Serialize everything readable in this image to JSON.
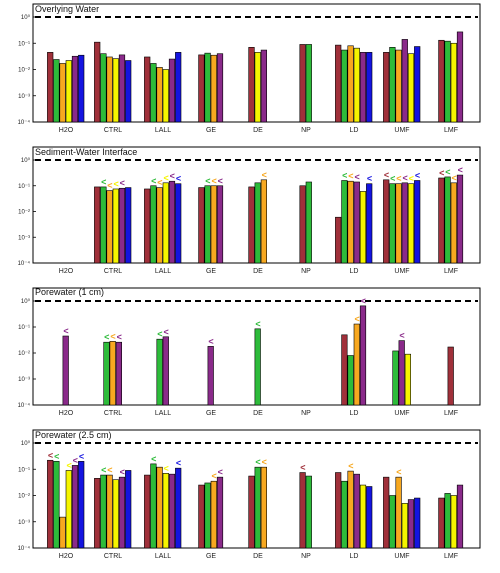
{
  "colors": {
    "brown": "#a0303a",
    "green": "#2dbb3a",
    "orange": "#f7a820",
    "yellow": "#f5f500",
    "purple": "#8a2a8a",
    "blue": "#1414e0"
  },
  "chart_data": [
    {
      "type": "bar",
      "title": "Overlying Water",
      "log_scale": true,
      "ylim": [
        0.0001,
        1
      ],
      "ytick_labels": [
        "10⁻⁴",
        "10⁻³",
        "10⁻²",
        "10⁻¹",
        "10⁰"
      ],
      "reference_line": 1,
      "categories": [
        "H2O",
        "CTRL",
        "LALL",
        "GE",
        "DE",
        "NP",
        "LD",
        "UMF",
        "LMF"
      ],
      "groups": [
        [
          [
            "brown",
            0.045
          ],
          [
            "green",
            0.024
          ],
          [
            "orange",
            0.017
          ],
          [
            "yellow",
            0.022
          ],
          [
            "purple",
            0.032
          ],
          [
            "blue",
            0.035
          ]
        ],
        [
          [
            "brown",
            0.11
          ],
          [
            "green",
            0.04
          ],
          [
            "orange",
            0.03
          ],
          [
            "yellow",
            0.026
          ],
          [
            "purple",
            0.036
          ],
          [
            "blue",
            0.022
          ]
        ],
        [
          [
            "brown",
            0.03
          ],
          [
            "green",
            0.017
          ],
          [
            "orange",
            0.012
          ],
          [
            "yellow",
            0.01
          ],
          [
            "purple",
            0.025
          ],
          [
            "blue",
            0.045
          ]
        ],
        [
          [
            "brown",
            0.036
          ],
          [
            "green",
            0.042
          ],
          [
            "orange",
            0.035
          ],
          [
            "purple",
            0.04
          ]
        ],
        [
          [
            "brown",
            0.07
          ],
          [
            "yellow",
            0.045
          ],
          [
            "purple",
            0.055
          ]
        ],
        [
          [
            "brown",
            0.09
          ],
          [
            "green",
            0.09
          ]
        ],
        [
          [
            "brown",
            0.085
          ],
          [
            "green",
            0.055
          ],
          [
            "orange",
            0.08
          ],
          [
            "yellow",
            0.065
          ],
          [
            "purple",
            0.045
          ],
          [
            "blue",
            0.045
          ]
        ],
        [
          [
            "brown",
            0.045
          ],
          [
            "green",
            0.07
          ],
          [
            "orange",
            0.055
          ],
          [
            "purple",
            0.14
          ],
          [
            "yellow",
            0.04
          ],
          [
            "blue",
            0.075
          ]
        ],
        [
          [
            "brown",
            0.13
          ],
          [
            "green",
            0.12
          ],
          [
            "yellow",
            0.1
          ],
          [
            "purple",
            0.27
          ]
        ]
      ],
      "less_than": []
    },
    {
      "type": "bar",
      "title": "Sediment-Water Interface",
      "log_scale": true,
      "ylim": [
        0.0001,
        1
      ],
      "ytick_labels": [
        "10⁻⁴",
        "10⁻³",
        "10⁻²",
        "10⁻¹",
        "10⁰"
      ],
      "reference_line": 1,
      "categories": [
        "H2O",
        "CTRL",
        "LALL",
        "GE",
        "DE",
        "NP",
        "LD",
        "UMF",
        "LMF"
      ],
      "groups": [
        [],
        [
          [
            "brown",
            0.09
          ],
          [
            "green",
            0.09
          ],
          [
            "orange",
            0.065
          ],
          [
            "yellow",
            0.075
          ],
          [
            "purple",
            0.08
          ],
          [
            "blue",
            0.085
          ]
        ],
        [
          [
            "brown",
            0.075
          ],
          [
            "green",
            0.1
          ],
          [
            "orange",
            0.085
          ],
          [
            "yellow",
            0.13
          ],
          [
            "purple",
            0.15
          ],
          [
            "blue",
            0.12
          ]
        ],
        [
          [
            "brown",
            0.085
          ],
          [
            "green",
            0.1
          ],
          [
            "orange",
            0.1
          ],
          [
            "purple",
            0.1
          ]
        ],
        [
          [
            "brown",
            0.09
          ],
          [
            "green",
            0.13
          ],
          [
            "orange",
            0.17
          ]
        ],
        [
          [
            "brown",
            0.1
          ],
          [
            "green",
            0.14
          ]
        ],
        [
          [
            "brown",
            0.006
          ],
          [
            "green",
            0.16
          ],
          [
            "orange",
            0.15
          ],
          [
            "purple",
            0.14
          ],
          [
            "yellow",
            0.06
          ],
          [
            "blue",
            0.12
          ]
        ],
        [
          [
            "brown",
            0.17
          ],
          [
            "green",
            0.12
          ],
          [
            "orange",
            0.12
          ],
          [
            "purple",
            0.13
          ],
          [
            "yellow",
            0.12
          ],
          [
            "blue",
            0.16
          ]
        ],
        [
          [
            "brown",
            0.2
          ],
          [
            "green",
            0.22
          ],
          [
            "orange",
            0.13
          ],
          [
            "purple",
            0.26
          ]
        ]
      ],
      "less_than": [
        [
          1,
          1,
          "green"
        ],
        [
          1,
          2,
          "orange"
        ],
        [
          1,
          3,
          "yellow"
        ],
        [
          1,
          4,
          "purple"
        ],
        [
          2,
          1,
          "green"
        ],
        [
          2,
          2,
          "orange"
        ],
        [
          2,
          3,
          "yellow"
        ],
        [
          2,
          4,
          "purple"
        ],
        [
          2,
          5,
          "blue"
        ],
        [
          3,
          1,
          "green"
        ],
        [
          3,
          2,
          "orange"
        ],
        [
          3,
          3,
          "purple"
        ],
        [
          4,
          2,
          "orange"
        ],
        [
          6,
          1,
          "green"
        ],
        [
          6,
          2,
          "orange"
        ],
        [
          6,
          3,
          "purple"
        ],
        [
          6,
          5,
          "blue"
        ],
        [
          7,
          0,
          "brown"
        ],
        [
          7,
          1,
          "green"
        ],
        [
          7,
          2,
          "orange"
        ],
        [
          7,
          3,
          "purple"
        ],
        [
          7,
          4,
          "yellow"
        ],
        [
          7,
          5,
          "blue"
        ],
        [
          8,
          0,
          "brown"
        ],
        [
          8,
          1,
          "green"
        ],
        [
          8,
          2,
          "orange"
        ],
        [
          8,
          3,
          "purple"
        ]
      ]
    },
    {
      "type": "bar",
      "title": "Porewater (1 cm)",
      "log_scale": true,
      "ylim": [
        0.0001,
        1
      ],
      "ytick_labels": [
        "10⁻⁴",
        "10⁻³",
        "10⁻²",
        "10⁻¹",
        "10⁰"
      ],
      "reference_line": 1,
      "categories": [
        "H2O",
        "CTRL",
        "LALL",
        "GE",
        "DE",
        "NP",
        "LD",
        "UMF",
        "LMF"
      ],
      "groups": [
        [
          [
            "purple",
            0.045
          ]
        ],
        [
          [
            "green",
            0.026
          ],
          [
            "orange",
            0.028
          ],
          [
            "purple",
            0.026
          ]
        ],
        [
          [
            "green",
            0.034
          ],
          [
            "purple",
            0.042
          ]
        ],
        [
          [
            "purple",
            0.018
          ]
        ],
        [
          [
            "green",
            0.085
          ]
        ],
        [],
        [
          [
            "brown",
            0.05
          ],
          [
            "green",
            0.008
          ],
          [
            "orange",
            0.13
          ],
          [
            "purple",
            0.65
          ]
        ],
        [
          [
            "green",
            0.012
          ],
          [
            "purple",
            0.03
          ],
          [
            "yellow",
            0.009
          ]
        ],
        [
          [
            "brown",
            0.017
          ]
        ]
      ],
      "less_than": [
        [
          0,
          0,
          "purple"
        ],
        [
          1,
          0,
          "green"
        ],
        [
          1,
          1,
          "orange"
        ],
        [
          1,
          2,
          "purple"
        ],
        [
          2,
          0,
          "green"
        ],
        [
          2,
          1,
          "purple"
        ],
        [
          3,
          0,
          "purple"
        ],
        [
          4,
          0,
          "green"
        ],
        [
          6,
          2,
          "orange"
        ],
        [
          6,
          3,
          "purple"
        ],
        [
          7,
          1,
          "purple"
        ]
      ]
    },
    {
      "type": "bar",
      "title": "Porewater (2.5 cm)",
      "log_scale": true,
      "ylim": [
        0.0001,
        1
      ],
      "ytick_labels": [
        "10⁻⁴",
        "10⁻³",
        "10⁻²",
        "10⁻¹",
        "10⁰"
      ],
      "reference_line": 1,
      "categories": [
        "H2O",
        "CTRL",
        "LALL",
        "GE",
        "DE",
        "NP",
        "LD",
        "UMF",
        "LMF"
      ],
      "groups": [
        [
          [
            "brown",
            0.22
          ],
          [
            "green",
            0.2
          ],
          [
            "orange",
            0.0015
          ],
          [
            "yellow",
            0.09
          ],
          [
            "purple",
            0.14
          ],
          [
            "blue",
            0.2
          ]
        ],
        [
          [
            "brown",
            0.045
          ],
          [
            "green",
            0.06
          ],
          [
            "orange",
            0.06
          ],
          [
            "yellow",
            0.04
          ],
          [
            "purple",
            0.05
          ],
          [
            "blue",
            0.09
          ]
        ],
        [
          [
            "brown",
            0.06
          ],
          [
            "green",
            0.16
          ],
          [
            "orange",
            0.12
          ],
          [
            "yellow",
            0.07
          ],
          [
            "purple",
            0.065
          ],
          [
            "blue",
            0.11
          ]
        ],
        [
          [
            "brown",
            0.025
          ],
          [
            "green",
            0.03
          ],
          [
            "orange",
            0.035
          ],
          [
            "purple",
            0.05
          ]
        ],
        [
          [
            "brown",
            0.055
          ],
          [
            "green",
            0.12
          ],
          [
            "orange",
            0.12
          ]
        ],
        [
          [
            "brown",
            0.075
          ],
          [
            "green",
            0.055
          ]
        ],
        [
          [
            "brown",
            0.075
          ],
          [
            "green",
            0.035
          ],
          [
            "orange",
            0.085
          ],
          [
            "purple",
            0.065
          ],
          [
            "yellow",
            0.025
          ],
          [
            "blue",
            0.022
          ]
        ],
        [
          [
            "brown",
            0.05
          ],
          [
            "green",
            0.01
          ],
          [
            "orange",
            0.05
          ],
          [
            "yellow",
            0.005
          ],
          [
            "purple",
            0.007
          ],
          [
            "blue",
            0.008
          ]
        ],
        [
          [
            "brown",
            0.008
          ],
          [
            "green",
            0.012
          ],
          [
            "yellow",
            0.01
          ],
          [
            "purple",
            0.025
          ]
        ]
      ],
      "less_than": [
        [
          0,
          0,
          "brown"
        ],
        [
          0,
          1,
          "green"
        ],
        [
          0,
          3,
          "yellow"
        ],
        [
          0,
          4,
          "purple"
        ],
        [
          0,
          5,
          "blue"
        ],
        [
          1,
          1,
          "green"
        ],
        [
          1,
          2,
          "orange"
        ],
        [
          1,
          4,
          "purple"
        ],
        [
          2,
          1,
          "green"
        ],
        [
          2,
          3,
          "yellow"
        ],
        [
          2,
          5,
          "blue"
        ],
        [
          3,
          2,
          "orange"
        ],
        [
          3,
          3,
          "purple"
        ],
        [
          4,
          1,
          "green"
        ],
        [
          4,
          2,
          "orange"
        ],
        [
          5,
          0,
          "brown"
        ],
        [
          6,
          2,
          "orange"
        ],
        [
          7,
          2,
          "orange"
        ]
      ]
    }
  ]
}
